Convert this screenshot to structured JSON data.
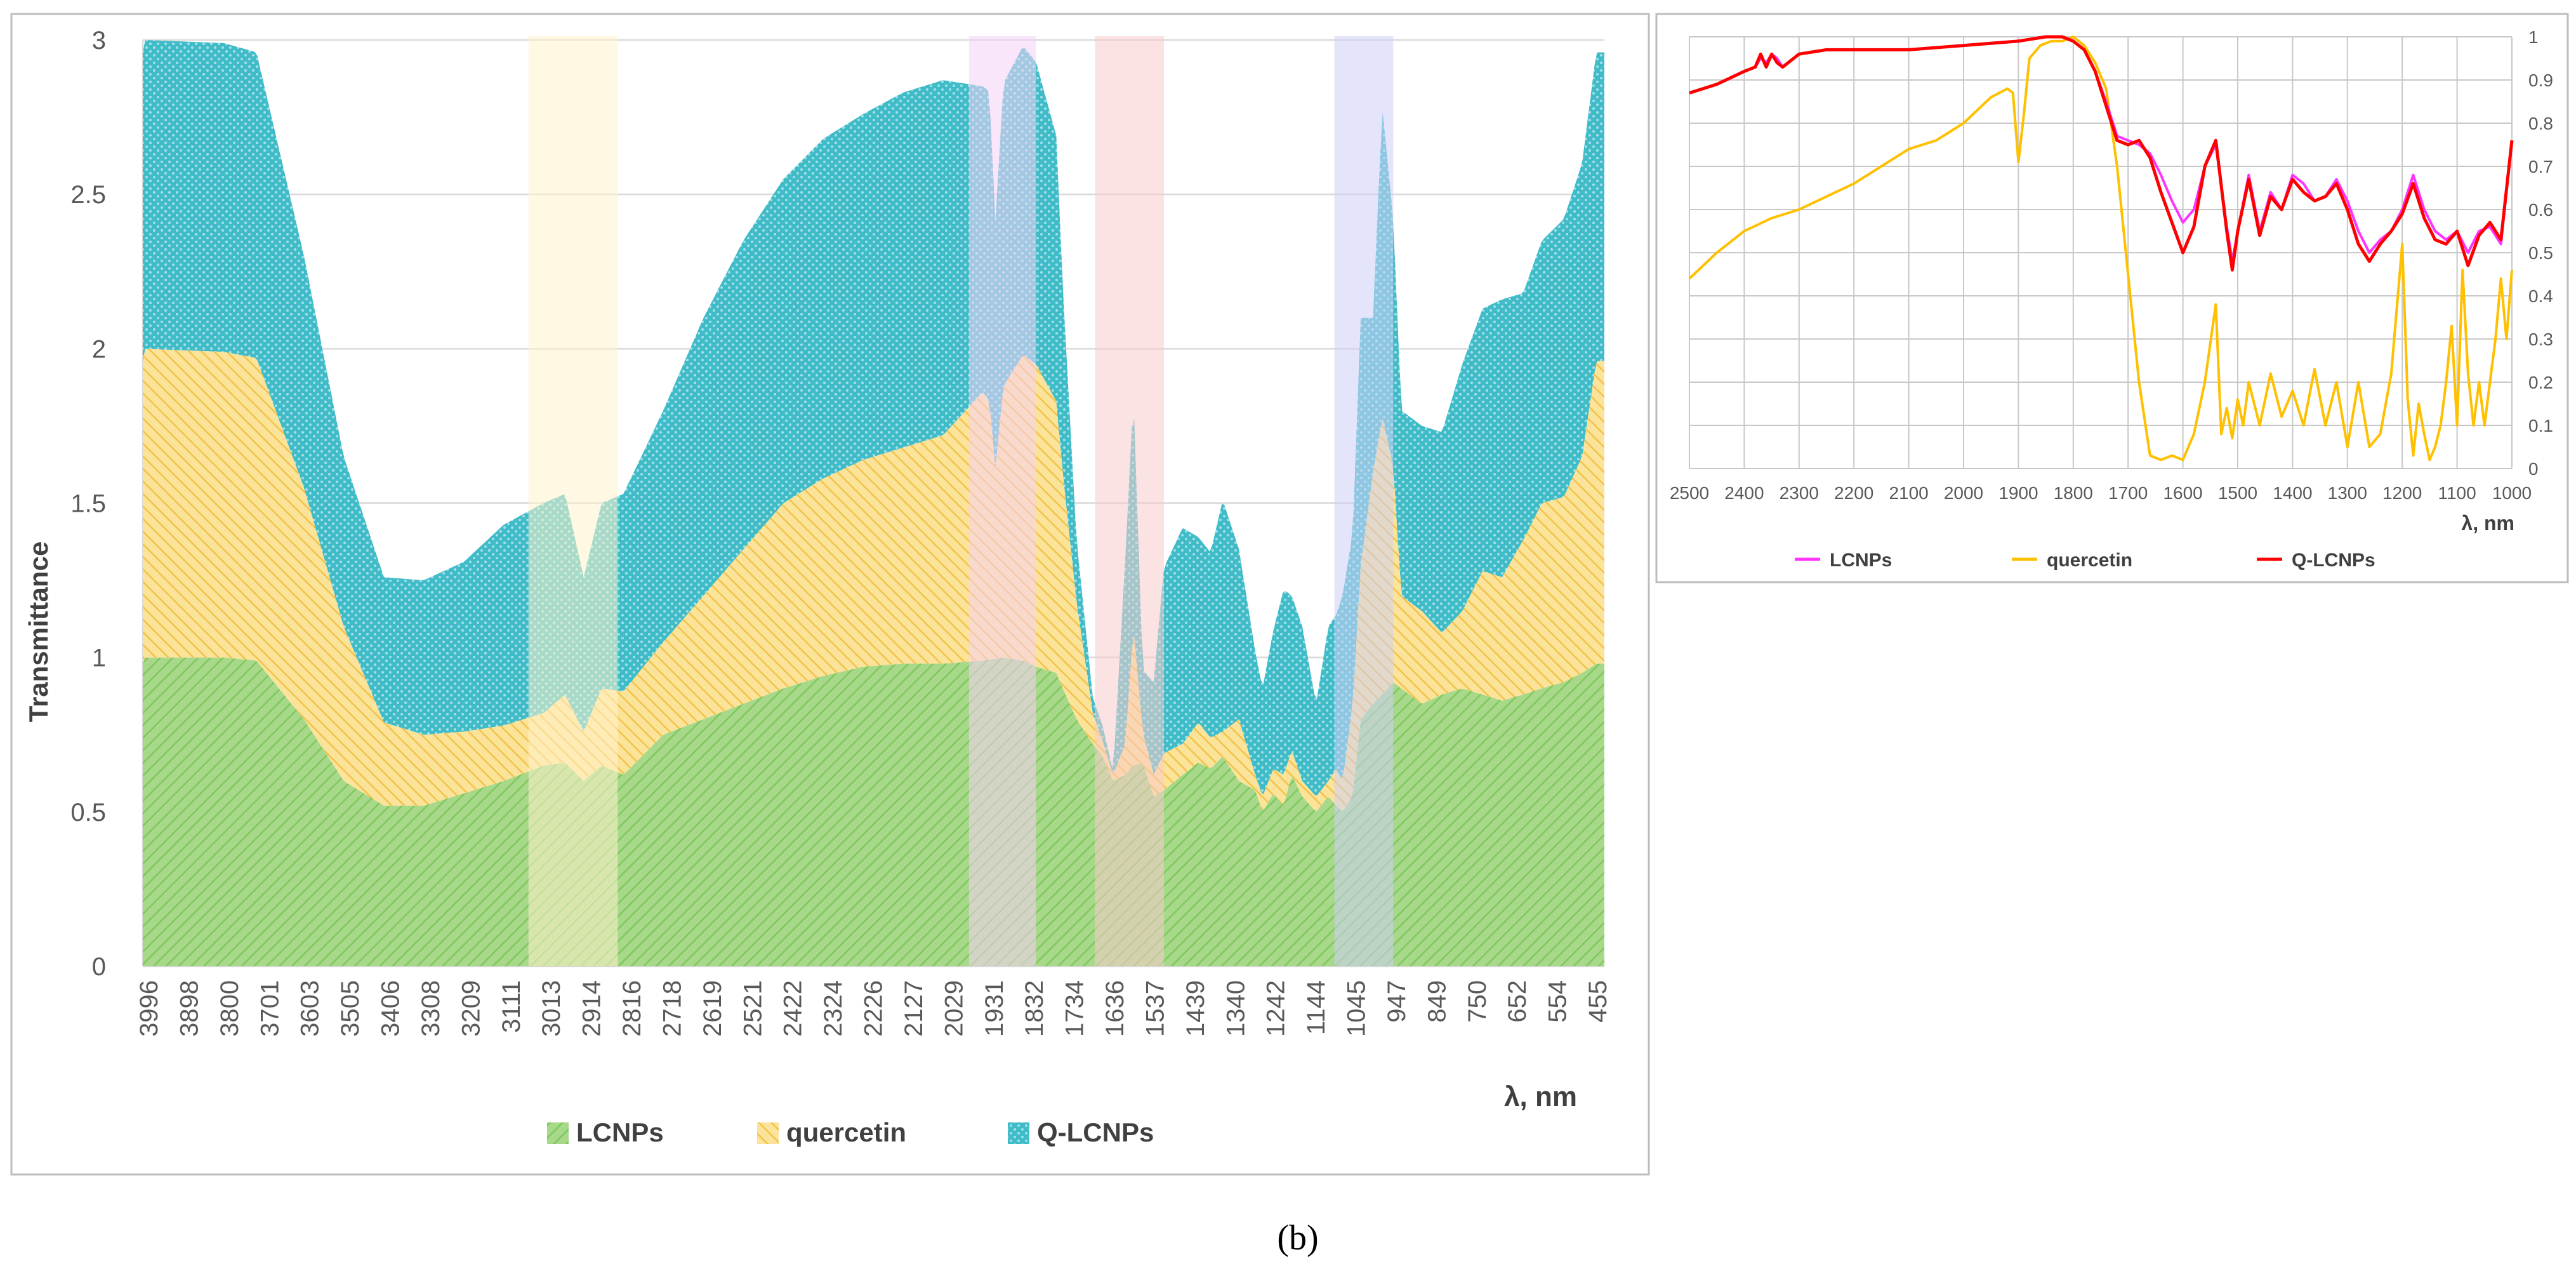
{
  "figure": {
    "caption": "(b)"
  },
  "chart_data": [
    {
      "type": "area",
      "stacked": true,
      "title": "",
      "xlabel": "λ, nm",
      "ylabel": "Transmittance",
      "ylim": [
        0,
        3
      ],
      "yticks": [
        "0",
        "0.5",
        "1",
        "1.5",
        "2",
        "2.5",
        "3"
      ],
      "x_reversed": true,
      "xlim": [
        4000,
        400
      ],
      "xticks": [
        "3996",
        "3898",
        "3800",
        "3701",
        "3603",
        "3505",
        "3406",
        "3308",
        "3209",
        "3111",
        "3013",
        "2914",
        "2816",
        "2718",
        "2619",
        "2521",
        "2422",
        "2324",
        "2226",
        "2127",
        "2029",
        "1931",
        "1832",
        "1734",
        "1636",
        "1537",
        "1439",
        "1340",
        "1242",
        "1144",
        "1045",
        "947",
        "849",
        "750",
        "652",
        "554",
        "455"
      ],
      "legend_position": "bottom",
      "highlight_bands": [
        {
          "from": 3050,
          "to": 2830,
          "color": "#fff2cc"
        },
        {
          "from": 1965,
          "to": 1800,
          "color": "#f6d2f6"
        },
        {
          "from": 1655,
          "to": 1485,
          "color": "#f8cccc"
        },
        {
          "from": 1065,
          "to": 920,
          "color": "#cdd0f5"
        }
      ],
      "series": [
        {
          "name": "LCNPs",
          "color": "#a8d88a",
          "hatch": "#7ec85c",
          "x": [
            3996,
            3800,
            3720,
            3603,
            3505,
            3406,
            3308,
            3209,
            3111,
            3013,
            2960,
            2914,
            2870,
            2816,
            2718,
            2619,
            2521,
            2422,
            2324,
            2226,
            2127,
            2029,
            1931,
            1880,
            1832,
            1800,
            1750,
            1734,
            1700,
            1660,
            1636,
            1610,
            1580,
            1560,
            1537,
            1510,
            1485,
            1439,
            1400,
            1370,
            1340,
            1300,
            1260,
            1242,
            1215,
            1190,
            1170,
            1144,
            1110,
            1080,
            1060,
            1045,
            1020,
            1000,
            970,
            947,
            920,
            900,
            849,
            800,
            750,
            700,
            652,
            600,
            554,
            500,
            455,
            420
          ],
          "values": [
            1.0,
            1.0,
            0.99,
            0.8,
            0.6,
            0.52,
            0.52,
            0.56,
            0.6,
            0.65,
            0.66,
            0.6,
            0.65,
            0.62,
            0.75,
            0.8,
            0.85,
            0.9,
            0.94,
            0.97,
            0.98,
            0.98,
            0.99,
            1.0,
            0.99,
            0.97,
            0.95,
            0.9,
            0.8,
            0.72,
            0.68,
            0.6,
            0.62,
            0.65,
            0.66,
            0.55,
            0.57,
            0.62,
            0.66,
            0.64,
            0.68,
            0.6,
            0.57,
            0.5,
            0.56,
            0.52,
            0.62,
            0.55,
            0.5,
            0.55,
            0.52,
            0.5,
            0.55,
            0.8,
            0.85,
            0.88,
            0.92,
            0.9,
            0.85,
            0.88,
            0.9,
            0.88,
            0.86,
            0.88,
            0.9,
            0.92,
            0.95,
            0.98
          ]
        },
        {
          "name": "quercetin",
          "color": "#f9d46a",
          "hatch": "#f0bb3c",
          "x": [
            3996,
            3800,
            3720,
            3603,
            3505,
            3406,
            3308,
            3209,
            3111,
            3013,
            2960,
            2914,
            2870,
            2816,
            2718,
            2619,
            2521,
            2422,
            2324,
            2226,
            2127,
            2029,
            1931,
            1915,
            1900,
            1880,
            1832,
            1800,
            1750,
            1734,
            1700,
            1660,
            1636,
            1610,
            1580,
            1560,
            1537,
            1510,
            1485,
            1439,
            1400,
            1370,
            1340,
            1300,
            1260,
            1242,
            1215,
            1190,
            1170,
            1144,
            1110,
            1080,
            1060,
            1045,
            1020,
            1000,
            970,
            947,
            920,
            900,
            849,
            800,
            750,
            700,
            652,
            600,
            554,
            500,
            455,
            420
          ],
          "values": [
            1.0,
            0.99,
            0.98,
            0.75,
            0.5,
            0.27,
            0.23,
            0.2,
            0.18,
            0.17,
            0.22,
            0.16,
            0.25,
            0.27,
            0.3,
            0.4,
            0.5,
            0.6,
            0.64,
            0.67,
            0.7,
            0.74,
            0.87,
            0.84,
            0.62,
            0.88,
            0.99,
            0.98,
            0.88,
            0.7,
            0.38,
            0.1,
            0.05,
            0.02,
            0.1,
            0.45,
            0.1,
            0.07,
            0.12,
            0.1,
            0.13,
            0.1,
            0.08,
            0.2,
            0.05,
            0.05,
            0.08,
            0.1,
            0.08,
            0.05,
            0.05,
            0.05,
            0.12,
            0.1,
            0.3,
            0.5,
            0.75,
            0.9,
            0.7,
            0.3,
            0.3,
            0.2,
            0.25,
            0.4,
            0.4,
            0.5,
            0.6,
            0.6,
            0.7,
            0.98
          ]
        },
        {
          "name": "Q-LCNPs",
          "color": "#3fbcc8",
          "hatch": "#a5dfe6",
          "x": [
            3996,
            3800,
            3720,
            3603,
            3505,
            3406,
            3308,
            3209,
            3111,
            3013,
            2960,
            2914,
            2870,
            2816,
            2718,
            2619,
            2521,
            2422,
            2324,
            2226,
            2127,
            2029,
            1931,
            1915,
            1900,
            1880,
            1832,
            1800,
            1750,
            1734,
            1700,
            1660,
            1636,
            1610,
            1580,
            1560,
            1537,
            1510,
            1485,
            1439,
            1400,
            1370,
            1340,
            1300,
            1260,
            1242,
            1215,
            1190,
            1170,
            1144,
            1110,
            1080,
            1060,
            1045,
            1020,
            1000,
            970,
            947,
            920,
            900,
            849,
            800,
            750,
            700,
            652,
            600,
            554,
            500,
            455,
            420
          ],
          "values": [
            1.0,
            1.0,
            0.99,
            0.75,
            0.55,
            0.47,
            0.5,
            0.55,
            0.65,
            0.68,
            0.65,
            0.5,
            0.6,
            0.64,
            0.75,
            0.9,
            1.0,
            1.05,
            1.1,
            1.12,
            1.15,
            1.15,
            0.99,
            1.0,
            0.8,
            0.98,
            1.0,
            0.98,
            0.86,
            0.6,
            0.2,
            0.05,
            0.05,
            0.01,
            0.6,
            0.75,
            0.2,
            0.3,
            0.6,
            0.7,
            0.6,
            0.6,
            0.75,
            0.55,
            0.4,
            0.35,
            0.45,
            0.6,
            0.5,
            0.5,
            0.3,
            0.5,
            0.5,
            0.6,
            0.55,
            0.8,
            0.5,
            1.0,
            0.8,
            0.6,
            0.6,
            0.65,
            0.8,
            0.85,
            0.9,
            0.8,
            0.85,
            0.9,
            0.95,
            1.0
          ]
        }
      ]
    },
    {
      "type": "line",
      "title": "",
      "xlabel": "λ, nm",
      "ylabel": "",
      "ylim": [
        0,
        1
      ],
      "yticks": [
        "0",
        "0.1",
        "0.2",
        "0.3",
        "0.4",
        "0.5",
        "0.6",
        "0.7",
        "0.8",
        "0.9",
        "1"
      ],
      "x_reversed": true,
      "xlim": [
        2500,
        1000
      ],
      "xticks": [
        "2500",
        "2400",
        "2300",
        "2200",
        "2100",
        "2000",
        "1900",
        "1800",
        "1700",
        "1600",
        "1500",
        "1400",
        "1300",
        "1200",
        "1100",
        "1000"
      ],
      "legend_position": "bottom",
      "series": [
        {
          "name": "LCNPs",
          "color": "#ff33ff",
          "x": [
            2500,
            2450,
            2400,
            2380,
            2370,
            2360,
            2350,
            2340,
            2330,
            2300,
            2250,
            2200,
            2100,
            2000,
            1900,
            1850,
            1820,
            1800,
            1780,
            1760,
            1740,
            1720,
            1700,
            1680,
            1660,
            1640,
            1620,
            1600,
            1580,
            1560,
            1540,
            1520,
            1510,
            1500,
            1480,
            1460,
            1440,
            1420,
            1400,
            1380,
            1360,
            1340,
            1320,
            1300,
            1280,
            1260,
            1240,
            1220,
            1200,
            1180,
            1160,
            1140,
            1120,
            1100,
            1080,
            1060,
            1040,
            1020,
            1000
          ],
          "values": [
            0.87,
            0.89,
            0.92,
            0.93,
            0.95,
            0.94,
            0.96,
            0.95,
            0.93,
            0.96,
            0.97,
            0.97,
            0.97,
            0.98,
            0.99,
            1.0,
            1.0,
            0.99,
            0.97,
            0.92,
            0.85,
            0.77,
            0.76,
            0.75,
            0.73,
            0.68,
            0.62,
            0.57,
            0.6,
            0.7,
            0.75,
            0.56,
            0.48,
            0.55,
            0.68,
            0.55,
            0.64,
            0.6,
            0.68,
            0.66,
            0.62,
            0.63,
            0.67,
            0.62,
            0.55,
            0.5,
            0.53,
            0.55,
            0.6,
            0.68,
            0.6,
            0.55,
            0.53,
            0.55,
            0.5,
            0.55,
            0.56,
            0.52,
            0.76
          ]
        },
        {
          "name": "quercetin",
          "color": "#ffc000",
          "x": [
            2500,
            2450,
            2400,
            2350,
            2300,
            2250,
            2200,
            2150,
            2100,
            2050,
            2000,
            1950,
            1920,
            1910,
            1900,
            1890,
            1880,
            1860,
            1840,
            1820,
            1800,
            1780,
            1760,
            1740,
            1720,
            1700,
            1680,
            1660,
            1640,
            1620,
            1600,
            1580,
            1560,
            1540,
            1530,
            1520,
            1510,
            1500,
            1490,
            1480,
            1460,
            1440,
            1420,
            1400,
            1380,
            1360,
            1340,
            1320,
            1300,
            1280,
            1260,
            1240,
            1220,
            1200,
            1190,
            1180,
            1170,
            1160,
            1150,
            1140,
            1130,
            1120,
            1110,
            1100,
            1090,
            1080,
            1070,
            1060,
            1050,
            1040,
            1030,
            1020,
            1010,
            1000
          ],
          "values": [
            0.44,
            0.5,
            0.55,
            0.58,
            0.6,
            0.63,
            0.66,
            0.7,
            0.74,
            0.76,
            0.8,
            0.86,
            0.88,
            0.87,
            0.71,
            0.82,
            0.95,
            0.98,
            0.99,
            0.99,
            1.0,
            0.98,
            0.94,
            0.88,
            0.7,
            0.45,
            0.2,
            0.03,
            0.02,
            0.03,
            0.02,
            0.08,
            0.2,
            0.38,
            0.08,
            0.14,
            0.07,
            0.16,
            0.1,
            0.2,
            0.1,
            0.22,
            0.12,
            0.18,
            0.1,
            0.23,
            0.1,
            0.2,
            0.05,
            0.2,
            0.05,
            0.08,
            0.22,
            0.52,
            0.16,
            0.03,
            0.15,
            0.08,
            0.02,
            0.05,
            0.1,
            0.2,
            0.33,
            0.1,
            0.46,
            0.22,
            0.1,
            0.2,
            0.1,
            0.2,
            0.3,
            0.44,
            0.3,
            0.46
          ]
        },
        {
          "name": "Q-LCNPs",
          "color": "#ff0000",
          "x": [
            2500,
            2450,
            2400,
            2380,
            2370,
            2360,
            2350,
            2340,
            2330,
            2300,
            2250,
            2200,
            2100,
            2000,
            1900,
            1850,
            1820,
            1800,
            1780,
            1760,
            1740,
            1720,
            1700,
            1680,
            1660,
            1640,
            1620,
            1600,
            1580,
            1560,
            1540,
            1520,
            1510,
            1500,
            1480,
            1460,
            1440,
            1420,
            1400,
            1380,
            1360,
            1340,
            1320,
            1300,
            1280,
            1260,
            1240,
            1220,
            1200,
            1180,
            1160,
            1140,
            1120,
            1100,
            1080,
            1060,
            1040,
            1020,
            1000
          ],
          "values": [
            0.87,
            0.89,
            0.92,
            0.93,
            0.96,
            0.93,
            0.96,
            0.94,
            0.93,
            0.96,
            0.97,
            0.97,
            0.97,
            0.98,
            0.99,
            1.0,
            1.0,
            0.99,
            0.97,
            0.92,
            0.84,
            0.76,
            0.75,
            0.76,
            0.72,
            0.64,
            0.57,
            0.5,
            0.56,
            0.7,
            0.76,
            0.55,
            0.46,
            0.55,
            0.67,
            0.54,
            0.63,
            0.6,
            0.67,
            0.64,
            0.62,
            0.63,
            0.66,
            0.6,
            0.52,
            0.48,
            0.52,
            0.55,
            0.59,
            0.66,
            0.58,
            0.53,
            0.52,
            0.55,
            0.47,
            0.54,
            0.57,
            0.53,
            0.76
          ]
        }
      ]
    }
  ]
}
